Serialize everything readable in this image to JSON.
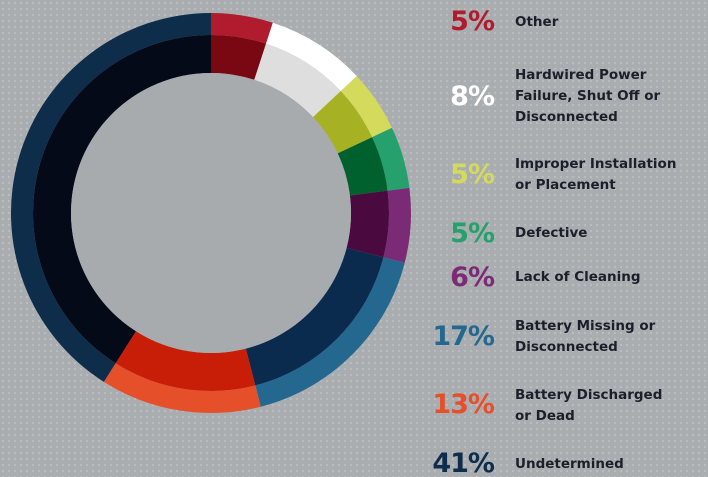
{
  "chart_data": {
    "type": "donut",
    "categories": [
      "Other",
      "Hardwired Power\nFailure, Shut Off or\nDisconnected",
      "Improper Installation\nor Placement",
      "Defective",
      "Lack of Cleaning",
      "Battery Missing or\nDisconnected",
      "Battery Discharged\nor Dead",
      "Undetermined"
    ],
    "values": [
      5,
      8,
      5,
      5,
      6,
      17,
      13,
      41
    ],
    "value_labels": [
      "5%",
      "8%",
      "5%",
      "5%",
      "6%",
      "17%",
      "13%",
      "41%"
    ],
    "colors": [
      "#b01c2e",
      "#ffffff",
      "#d3da5c",
      "#26a06c",
      "#7b2b76",
      "#24688f",
      "#e5502b",
      "#0e2d4a"
    ],
    "inner_colors": [
      "#7a0812",
      "#dedede",
      "#a6b224",
      "#00602e",
      "#4b0a3f",
      "#0a2a4e",
      "#c81e08",
      "#050a18"
    ]
  }
}
